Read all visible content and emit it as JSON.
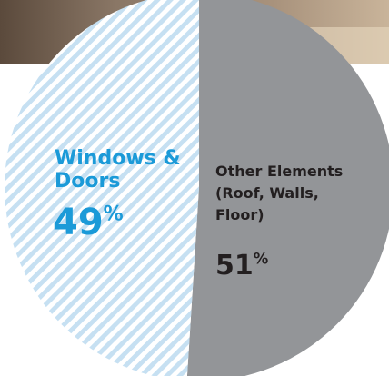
{
  "chart_data": {
    "type": "pie",
    "categories": [
      "Windows & Doors",
      "Other Elements (Roof, Walls, Floor)"
    ],
    "values": [
      49,
      51
    ],
    "value_labels": [
      "49%",
      "51%"
    ],
    "colors": [
      "#c6e0f2",
      "#939598"
    ],
    "label_colors": [
      "#1b9ad8",
      "#231f20"
    ]
  }
}
